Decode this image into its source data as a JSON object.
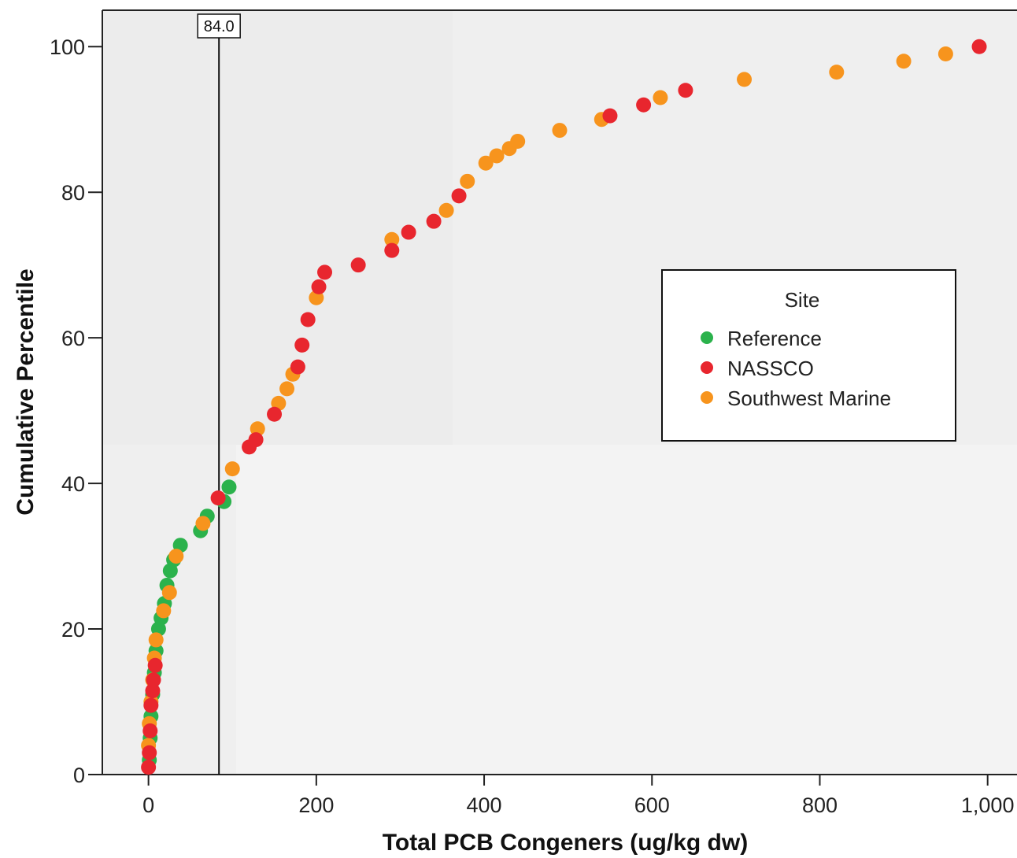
{
  "chart_data": {
    "type": "scatter",
    "xlabel": "Total PCB Congeners (ug/kg dw)",
    "ylabel": "Cumulative Percentile",
    "xlim": [
      -55,
      1035
    ],
    "ylim": [
      0,
      105
    ],
    "x_ticks": [
      0,
      200,
      400,
      600,
      800,
      1000
    ],
    "x_tick_labels": [
      "0",
      "200",
      "400",
      "600",
      "800",
      "1,000"
    ],
    "y_ticks": [
      0,
      20,
      40,
      60,
      80,
      100
    ],
    "y_tick_labels": [
      "0",
      "20",
      "40",
      "60",
      "80",
      "100"
    ],
    "grid": false,
    "reference_line": {
      "x": 84.0,
      "label": "84.0"
    },
    "legend": {
      "title": "Site",
      "placement": "right",
      "entries": [
        "Reference",
        "NASSCO",
        "Southwest Marine"
      ]
    },
    "series": [
      {
        "name": "Reference",
        "color": "#2bb24c",
        "points": [
          [
            1,
            2
          ],
          [
            2,
            5
          ],
          [
            3,
            8
          ],
          [
            5,
            11
          ],
          [
            7,
            14
          ],
          [
            9,
            17
          ],
          [
            12,
            20
          ],
          [
            15,
            21.5
          ],
          [
            19,
            23.5
          ],
          [
            22,
            26
          ],
          [
            26,
            28
          ],
          [
            30,
            29.5
          ],
          [
            38,
            31.5
          ],
          [
            62,
            33.5
          ],
          [
            70,
            35.5
          ],
          [
            90,
            37.5
          ],
          [
            96,
            39.5
          ]
        ]
      },
      {
        "name": "NASSCO",
        "color": "#e8262e",
        "points": [
          [
            0,
            1
          ],
          [
            1,
            3
          ],
          [
            2,
            6
          ],
          [
            3,
            9.5
          ],
          [
            5,
            11.5
          ],
          [
            6,
            13
          ],
          [
            8,
            15
          ],
          [
            83,
            38
          ],
          [
            120,
            45
          ],
          [
            128,
            46
          ],
          [
            150,
            49.5
          ],
          [
            178,
            56
          ],
          [
            183,
            59
          ],
          [
            190,
            62.5
          ],
          [
            203,
            67
          ],
          [
            210,
            69
          ],
          [
            250,
            70
          ],
          [
            290,
            72
          ],
          [
            310,
            74.5
          ],
          [
            340,
            76
          ],
          [
            370,
            79.5
          ],
          [
            550,
            90.5
          ],
          [
            590,
            92
          ],
          [
            640,
            94
          ],
          [
            990,
            100
          ]
        ]
      },
      {
        "name": "Southwest Marine",
        "color": "#f7941d",
        "points": [
          [
            0,
            4
          ],
          [
            1,
            7
          ],
          [
            3,
            10
          ],
          [
            5,
            13
          ],
          [
            7,
            16
          ],
          [
            9,
            18.5
          ],
          [
            18,
            22.5
          ],
          [
            25,
            25
          ],
          [
            33,
            30
          ],
          [
            65,
            34.5
          ],
          [
            100,
            42
          ],
          [
            130,
            47.5
          ],
          [
            155,
            51
          ],
          [
            165,
            53
          ],
          [
            172,
            55
          ],
          [
            200,
            65.5
          ],
          [
            290,
            73.5
          ],
          [
            355,
            77.5
          ],
          [
            380,
            81.5
          ],
          [
            402,
            84
          ],
          [
            415,
            85
          ],
          [
            430,
            86
          ],
          [
            440,
            87
          ],
          [
            490,
            88.5
          ],
          [
            540,
            90
          ],
          [
            610,
            93
          ],
          [
            710,
            95.5
          ],
          [
            820,
            96.5
          ],
          [
            900,
            98
          ],
          [
            950,
            99
          ]
        ]
      }
    ]
  }
}
